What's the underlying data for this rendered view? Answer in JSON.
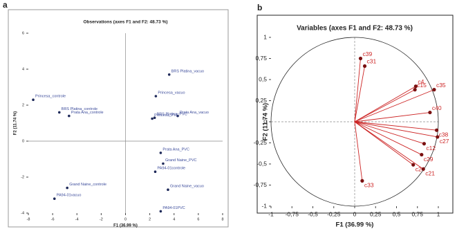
{
  "chart_data": [
    {
      "type": "scatter",
      "panel": "a",
      "title": "Observations (axes F1 and F2: 48.73 %)",
      "x_label": "F1 (36.99 %)",
      "y_label": "F2 (11.74 %)",
      "xlim": [
        -8,
        8
      ],
      "xticks": [
        -8,
        -6,
        -4,
        -2,
        0,
        2,
        4,
        6,
        8
      ],
      "ylim": [
        -4,
        6
      ],
      "yticks": [
        -4,
        -2,
        0,
        2,
        4,
        6
      ],
      "color": "#1f2a5a",
      "label_color": "#3a4a9a",
      "labels": [
        "Princesa_controle",
        "BRS Platina_controle",
        "Prata Ana_controle",
        "BRS Platina_vacuo",
        "Princesa_vacuo",
        "Prata Ana_vacuo",
        "BRS Platina_PVC",
        "Princesa_PVC",
        "Prata Ana_PVC",
        "Grand Naine_PVC",
        "PA94-01controle",
        "Grand Naine_vacuo",
        "PA94-01PVC",
        "Grand Naine_controle",
        "PA94-01vacuo"
      ],
      "x": [
        -7.6,
        -5.45,
        -4.65,
        3.6,
        2.5,
        4.3,
        2.4,
        2.2,
        2.9,
        3.1,
        2.45,
        3.5,
        2.9,
        -4.8,
        -5.85
      ],
      "values": [
        2.3,
        1.6,
        1.4,
        3.7,
        2.5,
        1.4,
        1.3,
        1.25,
        -0.65,
        -1.25,
        -1.7,
        -2.7,
        -3.9,
        -2.6,
        -3.2
      ]
    },
    {
      "type": "correlation_circle",
      "panel": "b",
      "title": "Variables (axes F1 and F2: 48.73 %)",
      "x_label": "F1 (36.99 %)",
      "y_label": "F2 (11.74 %)",
      "xlim": [
        -1,
        1
      ],
      "xticks": [
        -1,
        {
          "value": -0.75,
          "label": "-0,75"
        },
        {
          "value": -0.5,
          "label": "-0,5"
        },
        {
          "value": -0.25,
          "label": "-0,25"
        },
        0,
        {
          "value": 0.25,
          "label": "0,25"
        },
        {
          "value": 0.5,
          "label": "0,5"
        },
        {
          "value": 0.75,
          "label": "0,75"
        },
        1
      ],
      "ylim": [
        -1,
        1
      ],
      "yticks": [
        -1,
        {
          "value": -0.75,
          "label": "-0,75"
        },
        {
          "value": -0.5,
          "label": "-0,5"
        },
        {
          "value": -0.25,
          "label": "-0,25"
        },
        0,
        {
          "value": 0.25,
          "label": "0,25"
        },
        {
          "value": 0.5,
          "label": "0,5"
        },
        {
          "value": 0.75,
          "label": "0,75"
        },
        1
      ],
      "color": "#cc2222",
      "label_color": "#cc2222",
      "labels": [
        "c39",
        "c31",
        "c4",
        "c15",
        "c35",
        "c40",
        "c38",
        "c27",
        "c12",
        "c29",
        "c24",
        "c21",
        "c33"
      ],
      "x": [
        0.07,
        0.12,
        0.73,
        0.72,
        0.95,
        0.9,
        0.98,
        0.99,
        0.83,
        0.8,
        0.7,
        0.82,
        0.09
      ],
      "values": [
        0.75,
        0.66,
        0.42,
        0.38,
        0.38,
        0.11,
        -0.1,
        -0.18,
        -0.26,
        -0.39,
        -0.51,
        -0.56,
        -0.7
      ]
    }
  ]
}
